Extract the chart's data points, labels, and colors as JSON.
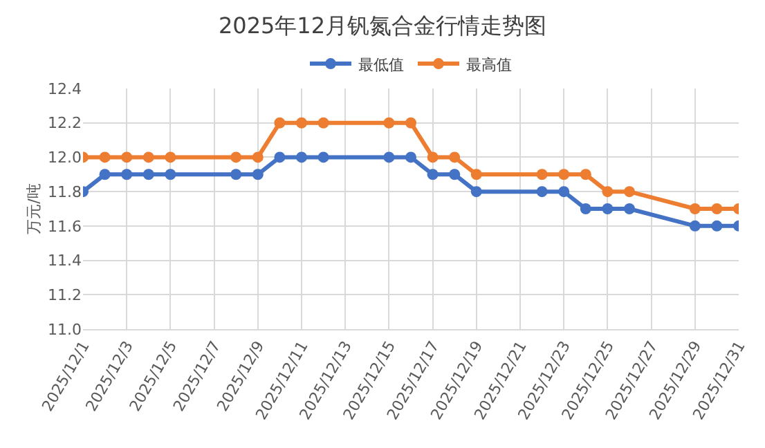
{
  "chart_data": {
    "type": "line",
    "title": "2025年12月钒氮合金行情走势图",
    "ylabel": "万元/吨",
    "x": [
      "2025-12-01",
      "2025-12-02",
      "2025-12-03",
      "2025-12-04",
      "2025-12-05",
      "2025-12-08",
      "2025-12-09",
      "2025-12-10",
      "2025-12-11",
      "2025-12-12",
      "2025-12-15",
      "2025-12-16",
      "2025-12-17",
      "2025-12-18",
      "2025-12-19",
      "2025-12-22",
      "2025-12-23",
      "2025-12-24",
      "2025-12-25",
      "2025-12-26",
      "2025-12-29",
      "2025-12-30",
      "2025-12-31"
    ],
    "series": [
      {
        "name": "最低值",
        "color": "#4472c4",
        "values": [
          11.8,
          11.9,
          11.9,
          11.9,
          11.9,
          11.9,
          11.9,
          12.0,
          12.0,
          12.0,
          12.0,
          12.0,
          11.9,
          11.9,
          11.8,
          11.8,
          11.8,
          11.7,
          11.7,
          11.7,
          11.6,
          11.6,
          11.6
        ]
      },
      {
        "name": "最高值",
        "color": "#ed7d31",
        "values": [
          12.0,
          12.0,
          12.0,
          12.0,
          12.0,
          12.0,
          12.0,
          12.2,
          12.2,
          12.2,
          12.2,
          12.2,
          12.0,
          12.0,
          11.9,
          11.9,
          11.9,
          11.9,
          11.8,
          11.8,
          11.7,
          11.7,
          11.7
        ]
      }
    ],
    "xlim": [
      "2025-12-01",
      "2025-12-31"
    ],
    "xticks": [
      {
        "value": "2025-12-01",
        "label": "2025/12/1"
      },
      {
        "value": "2025-12-03",
        "label": "2025/12/3"
      },
      {
        "value": "2025-12-05",
        "label": "2025/12/5"
      },
      {
        "value": "2025-12-07",
        "label": "2025/12/7"
      },
      {
        "value": "2025-12-09",
        "label": "2025/12/9"
      },
      {
        "value": "2025-12-11",
        "label": "2025/12/11"
      },
      {
        "value": "2025-12-13",
        "label": "2025/12/13"
      },
      {
        "value": "2025-12-15",
        "label": "2025/12/15"
      },
      {
        "value": "2025-12-17",
        "label": "2025/12/17"
      },
      {
        "value": "2025-12-19",
        "label": "2025/12/19"
      },
      {
        "value": "2025-12-21",
        "label": "2025/12/21"
      },
      {
        "value": "2025-12-23",
        "label": "2025/12/23"
      },
      {
        "value": "2025-12-25",
        "label": "2025/12/25"
      },
      {
        "value": "2025-12-27",
        "label": "2025/12/27"
      },
      {
        "value": "2025-12-29",
        "label": "2025/12/29"
      },
      {
        "value": "2025-12-31",
        "label": "2025/12/31"
      }
    ],
    "ylim": [
      11.0,
      12.4
    ],
    "yticks": [
      {
        "value": 11.0,
        "label": "11.0"
      },
      {
        "value": 11.2,
        "label": "11.2"
      },
      {
        "value": 11.4,
        "label": "11.4"
      },
      {
        "value": 11.6,
        "label": "11.6"
      },
      {
        "value": 11.8,
        "label": "11.8"
      },
      {
        "value": 12.0,
        "label": "12.0"
      },
      {
        "value": 12.2,
        "label": "12.2"
      },
      {
        "value": 12.4,
        "label": "12.4"
      }
    ],
    "grid": true,
    "legend": "top",
    "marker": "circle",
    "line_style": "solid"
  }
}
